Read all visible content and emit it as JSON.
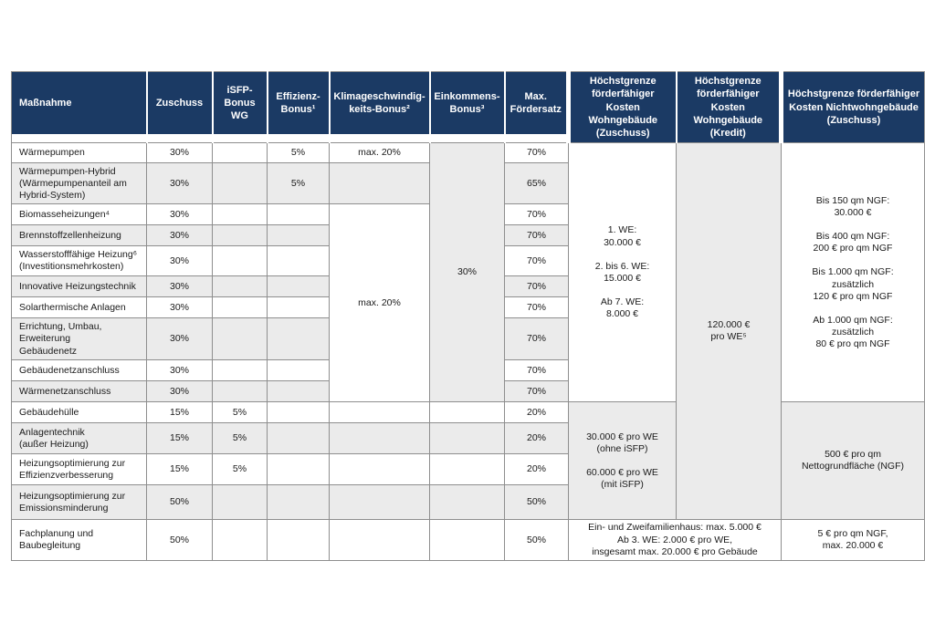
{
  "colors": {
    "header_bg": "#1b3a64",
    "header_text": "#ffffff",
    "row_alt_bg": "#ebebeb",
    "border": "#8e8e8e",
    "body_text": "#1a1a1a"
  },
  "table": {
    "header": [
      "Maßnahme",
      "Zuschuss",
      "iSFP-\nBonus\nWG",
      "Effizienz-\nBonus¹",
      "Klimageschwindig-\nkeits-Bonus²",
      "Einkommens-\nBonus³",
      "Max.\nFördersatz",
      "Höchstgrenze\nförderfähiger Kosten\nWohngebäude\n(Zuschuss)",
      "Höchstgrenze\nförderfähiger Kosten\nWohngebäude\n(Kredit)",
      "Höchstgrenze förderfähiger\nKosten Nichtwohngebäude\n(Zuschuss)"
    ],
    "rows": [
      {
        "cells": [
          {
            "t": "Wärmepumpen"
          },
          {
            "t": "30%"
          },
          {
            "t": ""
          },
          {
            "t": "5%"
          },
          {
            "t": "max. 20%"
          },
          {
            "t": "30%",
            "rs": 10,
            "bg": "g"
          },
          {
            "t": "70%"
          },
          {
            "t": "1. WE:\n30.000 €\n\n2. bis 6. WE:\n15.000 €\n\nAb 7. WE:\n8.000 €",
            "rs": 10,
            "bg": "w"
          },
          {
            "t": "120.000 €\npro WE⁵",
            "rs": 14,
            "bg": "g"
          },
          {
            "t": "Bis 150 qm NGF:\n30.000 €\n\nBis 400 qm NGF:\n200 € pro qm NGF\n\nBis 1.000 qm NGF:\nzusätzlich\n120 € pro qm NGF\n\nAb 1.000 qm NGF:\nzusätzlich\n80 € pro qm NGF",
            "rs": 10,
            "bg": "w"
          }
        ]
      },
      {
        "cells": [
          {
            "t": "Wärmepumpen-Hybrid\n(Wärmepumpenanteil am\nHybrid-System)"
          },
          {
            "t": "30%"
          },
          {
            "t": ""
          },
          {
            "t": "5%"
          },
          {
            "t": ""
          },
          {
            "t": "65%"
          }
        ]
      },
      {
        "cells": [
          {
            "t": "Biomasseheizungen⁴"
          },
          {
            "t": "30%"
          },
          {
            "t": ""
          },
          {
            "t": ""
          },
          {
            "t": "max. 20%",
            "rs": 8,
            "bg": "w"
          },
          {
            "t": "70%"
          }
        ]
      },
      {
        "cells": [
          {
            "t": "Brennstoffzellenheizung"
          },
          {
            "t": "30%"
          },
          {
            "t": ""
          },
          {
            "t": ""
          },
          {
            "t": "70%"
          }
        ]
      },
      {
        "cells": [
          {
            "t": "Wasserstofffähige Heizung⁶\n(Investitionsmehrkosten)"
          },
          {
            "t": "30%"
          },
          {
            "t": ""
          },
          {
            "t": ""
          },
          {
            "t": "70%"
          }
        ]
      },
      {
        "cells": [
          {
            "t": "Innovative Heizungstechnik"
          },
          {
            "t": "30%"
          },
          {
            "t": ""
          },
          {
            "t": ""
          },
          {
            "t": "70%"
          }
        ]
      },
      {
        "cells": [
          {
            "t": "Solarthermische Anlagen"
          },
          {
            "t": "30%"
          },
          {
            "t": ""
          },
          {
            "t": ""
          },
          {
            "t": "70%"
          }
        ]
      },
      {
        "cells": [
          {
            "t": "Errichtung, Umbau,\nErweiterung\nGebäudenetz"
          },
          {
            "t": "30%"
          },
          {
            "t": ""
          },
          {
            "t": ""
          },
          {
            "t": "70%"
          }
        ]
      },
      {
        "cells": [
          {
            "t": "Gebäudenetzanschluss"
          },
          {
            "t": "30%"
          },
          {
            "t": ""
          },
          {
            "t": ""
          },
          {
            "t": "70%"
          }
        ]
      },
      {
        "cells": [
          {
            "t": "Wärmenetzanschluss"
          },
          {
            "t": "30%"
          },
          {
            "t": ""
          },
          {
            "t": ""
          },
          {
            "t": "70%"
          }
        ]
      },
      {
        "cells": [
          {
            "t": "Gebäudehülle"
          },
          {
            "t": "15%"
          },
          {
            "t": "5%"
          },
          {
            "t": ""
          },
          {
            "t": ""
          },
          {
            "t": ""
          },
          {
            "t": "20%"
          },
          {
            "t": "30.000 € pro WE\n(ohne iSFP)\n\n60.000 € pro WE\n(mit iSFP)",
            "rs": 4,
            "bg": "g"
          },
          {
            "t": "500 € pro qm\nNettogrundfläche (NGF)",
            "rs": 4,
            "bg": "g"
          }
        ]
      },
      {
        "cells": [
          {
            "t": "Anlagentechnik\n(außer Heizung)"
          },
          {
            "t": "15%"
          },
          {
            "t": "5%"
          },
          {
            "t": ""
          },
          {
            "t": ""
          },
          {
            "t": ""
          },
          {
            "t": "20%"
          }
        ]
      },
      {
        "cells": [
          {
            "t": "Heizungsoptimierung zur\nEffizienzverbesserung"
          },
          {
            "t": "15%"
          },
          {
            "t": "5%"
          },
          {
            "t": ""
          },
          {
            "t": ""
          },
          {
            "t": ""
          },
          {
            "t": "20%"
          }
        ]
      },
      {
        "cells": [
          {
            "t": "Heizungsoptimierung zur\nEmissionsminderung"
          },
          {
            "t": "50%"
          },
          {
            "t": ""
          },
          {
            "t": ""
          },
          {
            "t": ""
          },
          {
            "t": ""
          },
          {
            "t": "50%"
          }
        ]
      },
      {
        "cells": [
          {
            "t": "Fachplanung und\nBaubegleitung"
          },
          {
            "t": "50%"
          },
          {
            "t": ""
          },
          {
            "t": ""
          },
          {
            "t": ""
          },
          {
            "t": ""
          },
          {
            "t": "50%"
          },
          {
            "t": "Ein- und Zweifamilienhaus: max. 5.000 €\nAb 3. WE: 2.000 € pro WE,\ninsgesamt max. 20.000 € pro Gebäude",
            "cs": 2,
            "bg": "w"
          },
          {
            "t": "5 € pro qm NGF,\nmax. 20.000 €",
            "bg": "w"
          }
        ]
      }
    ]
  }
}
